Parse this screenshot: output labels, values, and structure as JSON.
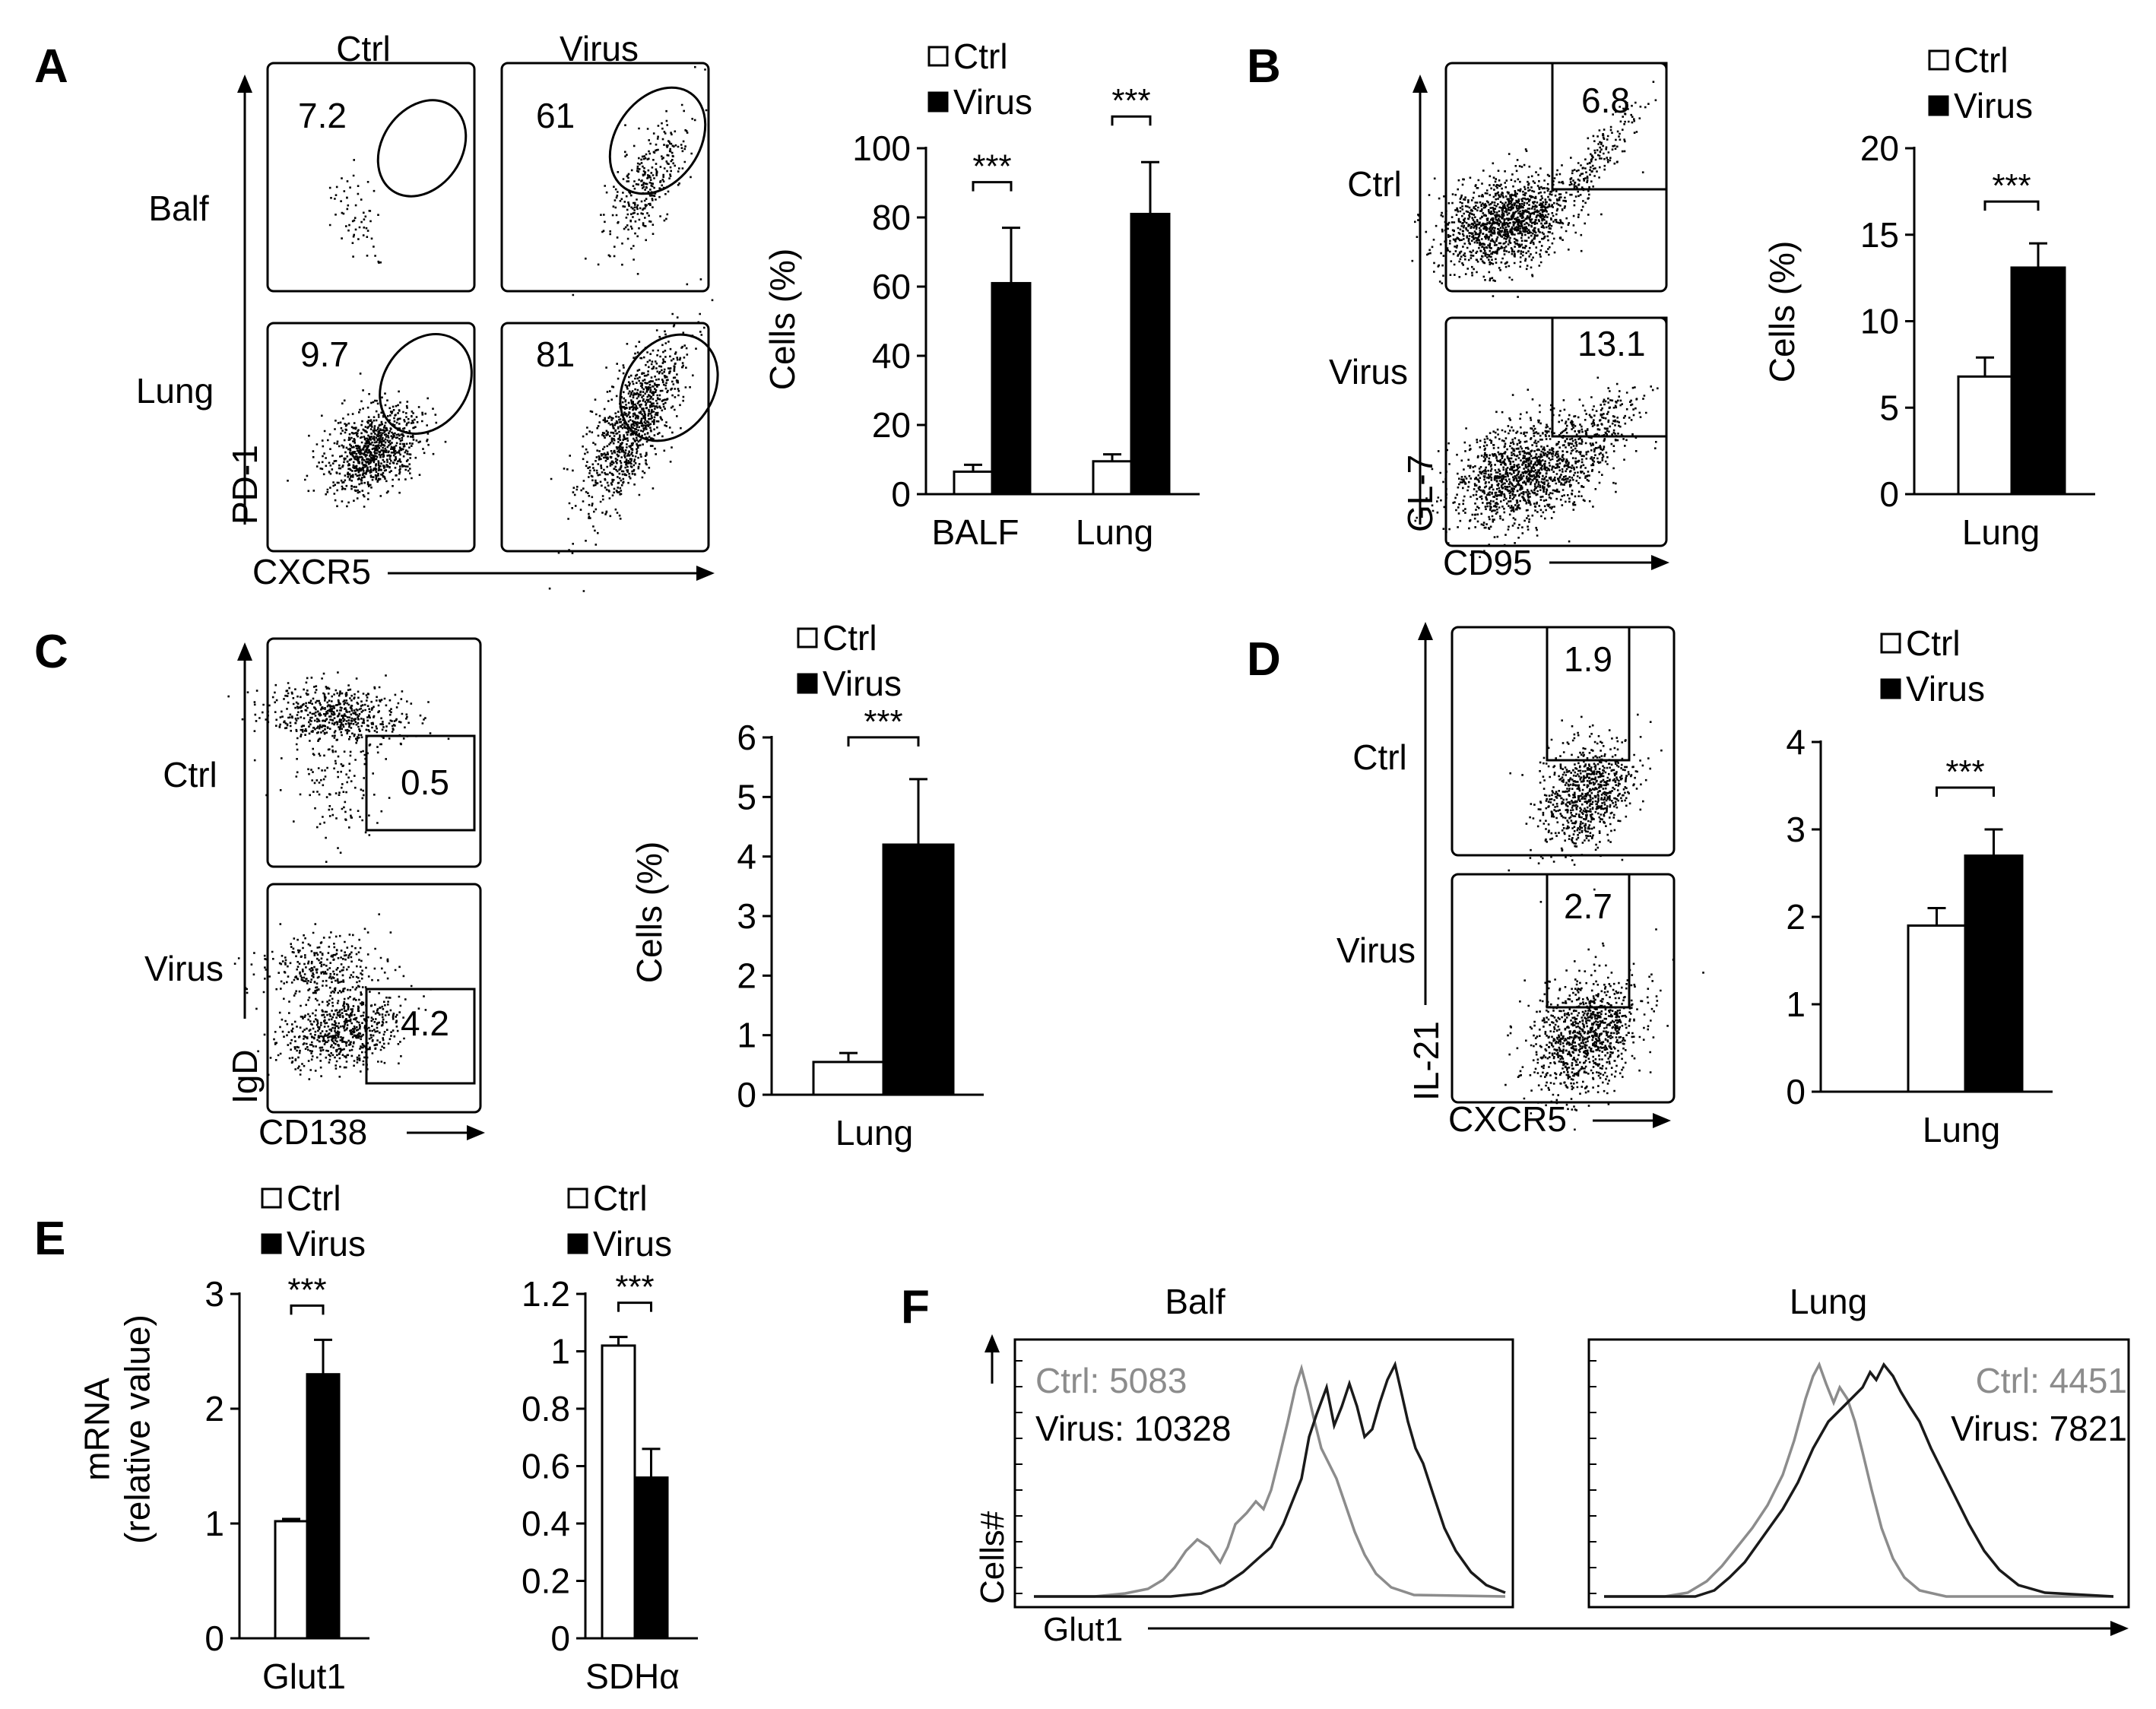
{
  "panels": {
    "A": {
      "label": "A",
      "col_labels": [
        "Ctrl",
        "Virus"
      ],
      "row_labels": [
        "Balf",
        "Lung"
      ],
      "gate_values": [
        "7.2",
        "61",
        "9.7",
        "81"
      ],
      "y_axis": "PD-1",
      "x_axis": "CXCR5"
    },
    "B": {
      "label": "B",
      "row_labels": [
        "Ctrl",
        "Virus"
      ],
      "gate_values": [
        "6.8",
        "13.1"
      ],
      "y_axis": "GL-7",
      "x_axis": "CD95"
    },
    "C": {
      "label": "C",
      "row_labels": [
        "Ctrl",
        "Virus"
      ],
      "gate_values": [
        "0.5",
        "4.2"
      ],
      "y_axis": "IgD",
      "x_axis": "CD138"
    },
    "D": {
      "label": "D",
      "row_labels": [
        "Ctrl",
        "Virus"
      ],
      "gate_values": [
        "1.9",
        "2.7"
      ],
      "y_axis": "IL-21",
      "x_axis": "CXCR5"
    },
    "E": {
      "label": "E"
    },
    "F": {
      "label": "F",
      "titles": [
        "Balf",
        "Lung"
      ],
      "ctrl_labels": [
        "Ctrl: 5083",
        "Ctrl: 4451"
      ],
      "virus_labels": [
        "Virus: 10328",
        "Virus: 7821"
      ],
      "y_axis": "Cells#",
      "x_axis": "Glut1"
    }
  },
  "legend": {
    "ctrl": "Ctrl",
    "virus": "Virus"
  },
  "significance": "***",
  "colors": {
    "ctrl_fill": "#ffffff",
    "virus_fill": "#000000",
    "ctrl_hist": "#8c8c8c",
    "virus_hist": "#1a1a1a"
  },
  "chart_data": [
    {
      "id": "A",
      "type": "bar",
      "ylabel": "Cells (%)",
      "xlabel": "",
      "categories": [
        "BALF",
        "Lung"
      ],
      "ylim": [
        0,
        100
      ],
      "yticks": [
        0,
        20,
        40,
        60,
        80,
        100
      ],
      "series": [
        {
          "name": "Ctrl",
          "values": [
            6.5,
            9.5
          ],
          "errors": [
            2,
            2
          ]
        },
        {
          "name": "Virus",
          "values": [
            61,
            81
          ],
          "errors": [
            16,
            15
          ]
        }
      ],
      "annotations": [
        "***",
        "***"
      ]
    },
    {
      "id": "B",
      "type": "bar",
      "ylabel": "Cells (%)",
      "xlabel": "",
      "categories": [
        "Lung"
      ],
      "ylim": [
        0,
        20
      ],
      "yticks": [
        0,
        5,
        10,
        15,
        20
      ],
      "series": [
        {
          "name": "Ctrl",
          "values": [
            6.8
          ],
          "errors": [
            1.1
          ]
        },
        {
          "name": "Virus",
          "values": [
            13.1
          ],
          "errors": [
            1.4
          ]
        }
      ],
      "annotations": [
        "***"
      ]
    },
    {
      "id": "C",
      "type": "bar",
      "ylabel": "Cells (%)",
      "xlabel": "",
      "categories": [
        "Lung"
      ],
      "ylim": [
        0,
        6
      ],
      "yticks": [
        0,
        1,
        2,
        3,
        4,
        5,
        6
      ],
      "series": [
        {
          "name": "Ctrl",
          "values": [
            0.55
          ],
          "errors": [
            0.15
          ]
        },
        {
          "name": "Virus",
          "values": [
            4.2
          ],
          "errors": [
            1.1
          ]
        }
      ],
      "annotations": [
        "***"
      ]
    },
    {
      "id": "D",
      "type": "bar",
      "ylabel": "",
      "xlabel": "",
      "categories": [
        "Lung"
      ],
      "ylim": [
        0,
        4
      ],
      "yticks": [
        0,
        1,
        2,
        3,
        4
      ],
      "series": [
        {
          "name": "Ctrl",
          "values": [
            1.9
          ],
          "errors": [
            0.2
          ]
        },
        {
          "name": "Virus",
          "values": [
            2.7
          ],
          "errors": [
            0.3
          ]
        }
      ],
      "annotations": [
        "***"
      ]
    },
    {
      "id": "E1",
      "type": "bar",
      "ylabel": "mRNA\n(relative value)",
      "xlabel": "",
      "categories": [
        "Glut1"
      ],
      "ylim": [
        0,
        3
      ],
      "yticks": [
        0,
        1,
        2,
        3
      ],
      "series": [
        {
          "name": "Ctrl",
          "values": [
            1.02
          ],
          "errors": [
            0.02
          ]
        },
        {
          "name": "Virus",
          "values": [
            2.3
          ],
          "errors": [
            0.3
          ]
        }
      ],
      "annotations": [
        "***"
      ]
    },
    {
      "id": "E2",
      "type": "bar",
      "ylabel": "",
      "xlabel": "",
      "categories": [
        "SDHα"
      ],
      "ylim": [
        0,
        1.2
      ],
      "yticks": [
        0,
        0.2,
        0.4,
        0.6,
        0.8,
        1,
        1.2
      ],
      "series": [
        {
          "name": "Ctrl",
          "values": [
            1.02
          ],
          "errors": [
            0.03
          ]
        },
        {
          "name": "Virus",
          "values": [
            0.56
          ],
          "errors": [
            0.1
          ]
        }
      ],
      "annotations": [
        "***"
      ]
    }
  ]
}
